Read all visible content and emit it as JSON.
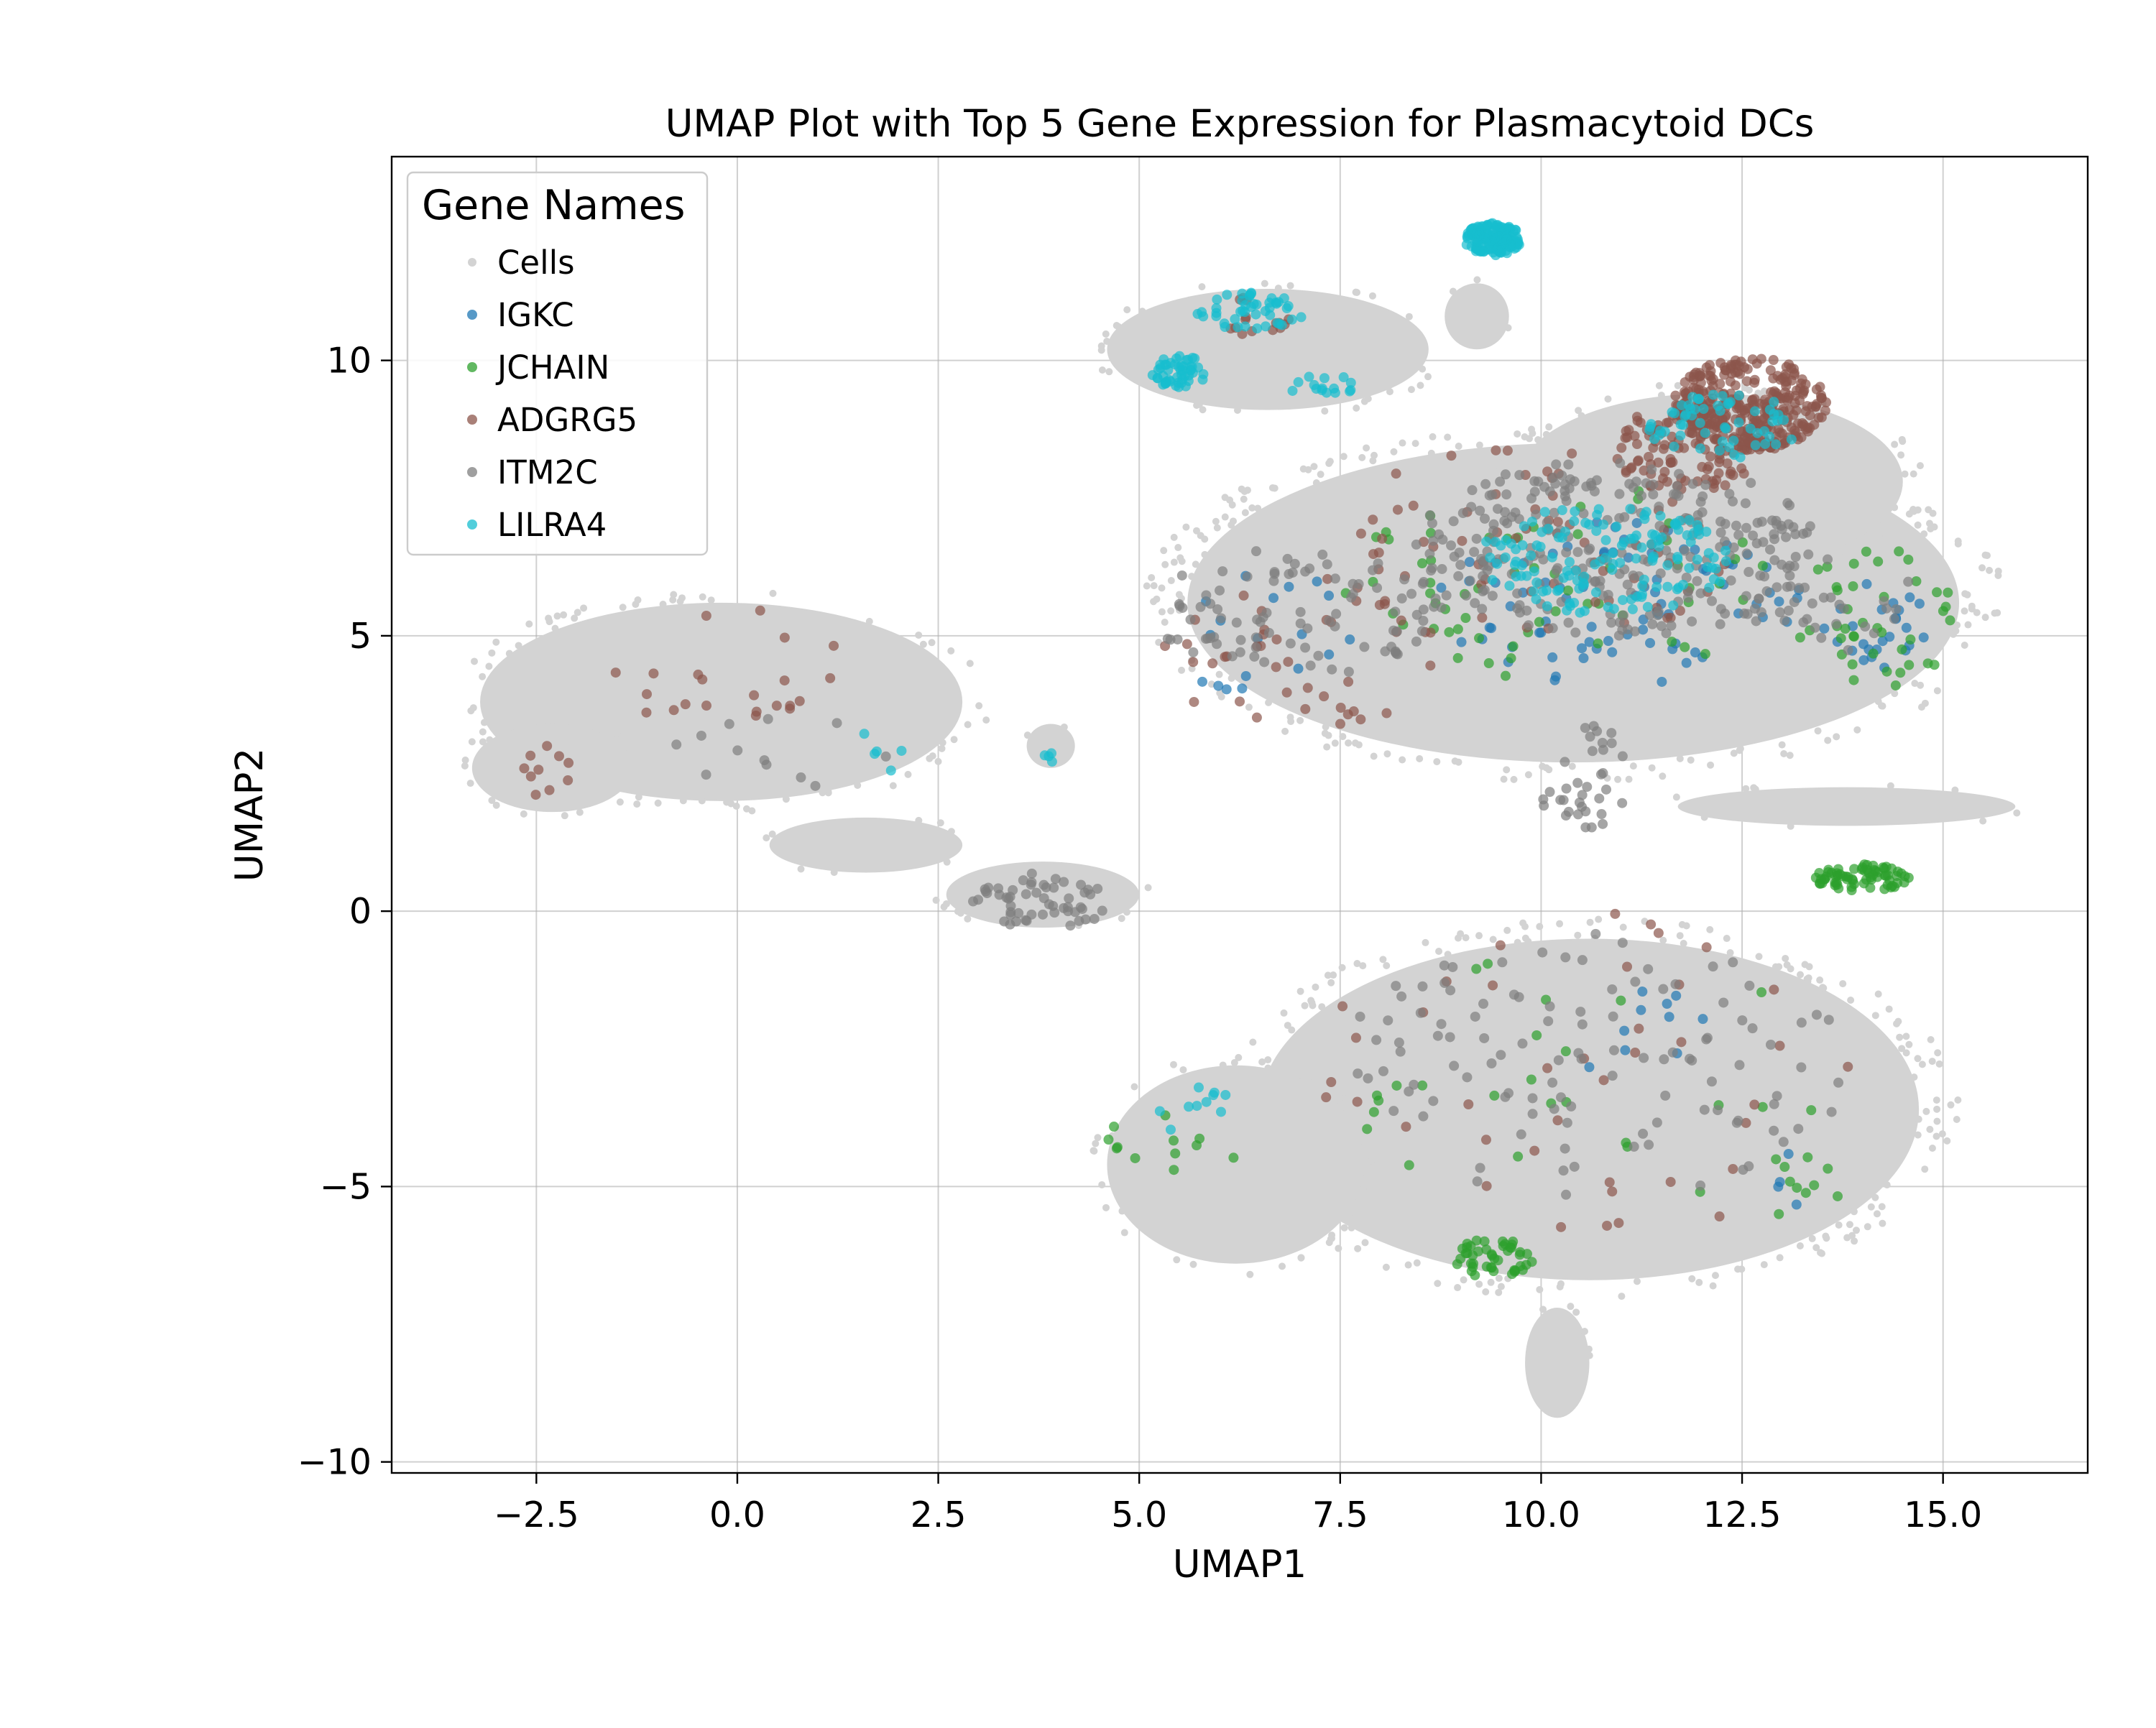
{
  "chart_data": {
    "type": "scatter",
    "title": "UMAP Plot with Top 5 Gene Expression for Plasmacytoid DCs",
    "xlabel": "UMAP1",
    "ylabel": "UMAP2",
    "xlim": [
      -4.3,
      16.8
    ],
    "ylim": [
      -10.2,
      13.7
    ],
    "xticks": [
      -2.5,
      0.0,
      2.5,
      5.0,
      7.5,
      10.0,
      12.5,
      15.0
    ],
    "xtick_labels": [
      "−2.5",
      "0.0",
      "2.5",
      "5.0",
      "7.5",
      "10.0",
      "12.5",
      "15.0"
    ],
    "yticks": [
      -10,
      -5,
      0,
      5,
      10
    ],
    "ytick_labels": [
      "−10",
      "−5",
      "0",
      "5",
      "10"
    ],
    "grid": true,
    "legend": {
      "title": "Gene Names",
      "placement": "top-left",
      "entries": [
        "Cells",
        "IGKC",
        "JCHAIN",
        "ADGRG5",
        "ITM2C",
        "LILRA4"
      ]
    },
    "colors": {
      "Cells": "#d3d3d3",
      "IGKC": "#1f77b4",
      "JCHAIN": "#2ca02c",
      "ADGRG5": "#8c564b",
      "ITM2C": "#7f7f7f",
      "LILRA4": "#17becf"
    },
    "background_regions": [
      {
        "cx": -0.2,
        "cy": 3.8,
        "rx": 3.0,
        "ry": 1.8
      },
      {
        "cx": -2.3,
        "cy": 2.6,
        "rx": 1.0,
        "ry": 0.8
      },
      {
        "cx": 1.6,
        "cy": 1.2,
        "rx": 1.2,
        "ry": 0.5
      },
      {
        "cx": 3.8,
        "cy": 0.3,
        "rx": 1.2,
        "ry": 0.6
      },
      {
        "cx": 6.6,
        "cy": 10.2,
        "rx": 2.0,
        "ry": 1.1
      },
      {
        "cx": 9.2,
        "cy": 10.8,
        "rx": 0.4,
        "ry": 0.6
      },
      {
        "cx": 10.4,
        "cy": 5.6,
        "rx": 4.8,
        "ry": 2.9
      },
      {
        "cx": 12.1,
        "cy": 7.8,
        "rx": 2.4,
        "ry": 1.6
      },
      {
        "cx": 13.8,
        "cy": 1.9,
        "rx": 2.1,
        "ry": 0.35
      },
      {
        "cx": 10.6,
        "cy": -3.6,
        "rx": 4.1,
        "ry": 3.1
      },
      {
        "cx": 6.2,
        "cy": -4.6,
        "rx": 1.6,
        "ry": 1.8
      },
      {
        "cx": 10.2,
        "cy": -8.2,
        "rx": 0.4,
        "ry": 1.0
      },
      {
        "cx": 3.9,
        "cy": 3.0,
        "rx": 0.3,
        "ry": 0.4
      }
    ],
    "series": [
      {
        "name": "IGKC",
        "clusters": [
          {
            "cx": 11.0,
            "cy": 5.6,
            "rx": 2.4,
            "ry": 1.5,
            "n": 80
          },
          {
            "cx": 14.2,
            "cy": 5.2,
            "rx": 0.7,
            "ry": 0.8,
            "n": 25
          },
          {
            "cx": 6.5,
            "cy": 5.0,
            "rx": 1.3,
            "ry": 1.2,
            "n": 18
          },
          {
            "cx": 11.0,
            "cy": -1.8,
            "rx": 1.3,
            "ry": 1.2,
            "n": 10
          },
          {
            "cx": 13.2,
            "cy": -4.8,
            "rx": 0.5,
            "ry": 0.6,
            "n": 4
          }
        ]
      },
      {
        "name": "JCHAIN",
        "clusters": [
          {
            "cx": 14.0,
            "cy": 0.6,
            "rx": 0.6,
            "ry": 0.25,
            "n": 70
          },
          {
            "cx": 9.4,
            "cy": -6.3,
            "rx": 0.5,
            "ry": 0.35,
            "n": 45
          },
          {
            "cx": 14.2,
            "cy": 5.2,
            "rx": 1.1,
            "ry": 1.4,
            "n": 40
          },
          {
            "cx": 10.2,
            "cy": 6.0,
            "rx": 2.8,
            "ry": 1.8,
            "n": 60
          },
          {
            "cx": 5.4,
            "cy": -4.2,
            "rx": 0.9,
            "ry": 0.7,
            "n": 12
          },
          {
            "cx": 10.5,
            "cy": -3.0,
            "rx": 3.0,
            "ry": 2.5,
            "n": 25
          },
          {
            "cx": 13.3,
            "cy": -5.0,
            "rx": 0.5,
            "ry": 0.9,
            "n": 10
          }
        ]
      },
      {
        "name": "ADGRG5",
        "clusters": [
          {
            "cx": 12.6,
            "cy": 9.2,
            "rx": 0.95,
            "ry": 0.85,
            "n": 300
          },
          {
            "cx": 11.8,
            "cy": 8.4,
            "rx": 0.9,
            "ry": 0.8,
            "n": 120
          },
          {
            "cx": 9.8,
            "cy": 6.6,
            "rx": 2.6,
            "ry": 1.8,
            "n": 70
          },
          {
            "cx": 7.0,
            "cy": 4.6,
            "rx": 1.8,
            "ry": 1.3,
            "n": 40
          },
          {
            "cx": 0.0,
            "cy": 4.3,
            "rx": 1.6,
            "ry": 1.2,
            "n": 22
          },
          {
            "cx": -2.4,
            "cy": 2.6,
            "rx": 0.5,
            "ry": 0.5,
            "n": 10
          },
          {
            "cx": 6.5,
            "cy": 10.8,
            "rx": 0.5,
            "ry": 0.4,
            "n": 15
          },
          {
            "cx": 10.5,
            "cy": -3.0,
            "rx": 3.5,
            "ry": 3.0,
            "n": 40
          }
        ]
      },
      {
        "name": "ITM2C",
        "clusters": [
          {
            "cx": 11.0,
            "cy": 6.6,
            "rx": 2.6,
            "ry": 1.6,
            "n": 260
          },
          {
            "cx": 7.0,
            "cy": 5.4,
            "rx": 1.8,
            "ry": 1.2,
            "n": 90
          },
          {
            "cx": 3.8,
            "cy": 0.2,
            "rx": 0.9,
            "ry": 0.5,
            "n": 55
          },
          {
            "cx": 10.6,
            "cy": 2.5,
            "rx": 0.7,
            "ry": 1.0,
            "n": 35
          },
          {
            "cx": 10.7,
            "cy": -2.8,
            "rx": 3.2,
            "ry": 2.4,
            "n": 110
          },
          {
            "cx": 0.5,
            "cy": 3.0,
            "rx": 1.5,
            "ry": 1.0,
            "n": 12
          },
          {
            "cx": 13.5,
            "cy": 5.6,
            "rx": 1.2,
            "ry": 0.9,
            "n": 35
          }
        ]
      },
      {
        "name": "LILRA4",
        "clusters": [
          {
            "cx": 9.4,
            "cy": 12.2,
            "rx": 0.35,
            "ry": 0.3,
            "n": 150
          },
          {
            "cx": 5.5,
            "cy": 9.8,
            "rx": 0.35,
            "ry": 0.3,
            "n": 50
          },
          {
            "cx": 6.4,
            "cy": 10.9,
            "rx": 0.7,
            "ry": 0.35,
            "n": 45
          },
          {
            "cx": 7.3,
            "cy": 9.5,
            "rx": 0.5,
            "ry": 0.25,
            "n": 15
          },
          {
            "cx": 12.3,
            "cy": 8.8,
            "rx": 1.0,
            "ry": 0.6,
            "n": 60
          },
          {
            "cx": 10.8,
            "cy": 6.4,
            "rx": 1.6,
            "ry": 1.0,
            "n": 140
          },
          {
            "cx": 5.7,
            "cy": -3.6,
            "rx": 0.5,
            "ry": 0.5,
            "n": 10
          },
          {
            "cx": 1.8,
            "cy": 2.9,
            "rx": 0.4,
            "ry": 0.4,
            "n": 5
          },
          {
            "cx": 3.9,
            "cy": 2.8,
            "rx": 0.1,
            "ry": 0.15,
            "n": 4
          }
        ]
      }
    ]
  }
}
